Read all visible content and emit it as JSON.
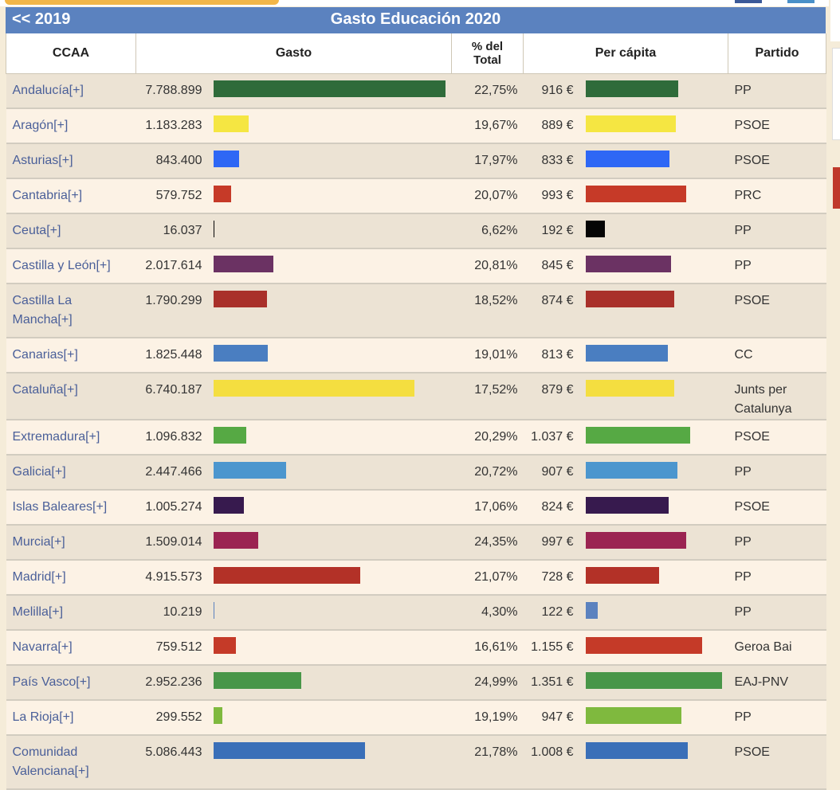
{
  "header": {
    "back_label": "<<  2019",
    "title": "Gasto Educación 2020"
  },
  "columns": {
    "ccaa": "CCAA",
    "gasto": "Gasto",
    "pct_line1": "% del",
    "pct_line2": "Total",
    "percapita": "Per cápita",
    "partido": "Partido"
  },
  "colors": {
    "title_bar": "#5b82bf",
    "link": "#4a5f99"
  },
  "chart_data": {
    "type": "table",
    "gasto_max": 7788899,
    "percapita_max": 1351,
    "rows": [
      {
        "name": "Andalucía[+]",
        "gasto": 7788899,
        "gasto_label": "7.788.899",
        "pct": "22,75%",
        "percapita": 916,
        "percapita_label": "916 €",
        "partido": "PP",
        "color": "#2f6b3a"
      },
      {
        "name": "Aragón[+]",
        "gasto": 1183283,
        "gasto_label": "1.183.283",
        "pct": "19,67%",
        "percapita": 889,
        "percapita_label": "889 €",
        "partido": "PSOE",
        "color": "#f5e642"
      },
      {
        "name": "Asturias[+]",
        "gasto": 843400,
        "gasto_label": "843.400",
        "pct": "17,97%",
        "percapita": 833,
        "percapita_label": "833 €",
        "partido": "PSOE",
        "color": "#2e67f5"
      },
      {
        "name": "Cantabria[+]",
        "gasto": 579752,
        "gasto_label": "579.752",
        "pct": "20,07%",
        "percapita": 993,
        "percapita_label": "993 €",
        "partido": "PRC",
        "color": "#c63a28"
      },
      {
        "name": "Ceuta[+]",
        "gasto": 16037,
        "gasto_label": "16.037",
        "pct": "6,62%",
        "percapita": 192,
        "percapita_label": "192 €",
        "partido": "PP",
        "color": "#050505"
      },
      {
        "name": "Castilla y León[+]",
        "gasto": 2017614,
        "gasto_label": "2.017.614",
        "pct": "20,81%",
        "percapita": 845,
        "percapita_label": "845 €",
        "partido": "PP",
        "color": "#6b3263"
      },
      {
        "name": "Castilla La Mancha[+]",
        "gasto": 1790299,
        "gasto_label": "1.790.299",
        "pct": "18,52%",
        "percapita": 874,
        "percapita_label": "874 €",
        "partido": "PSOE",
        "color": "#a9302a"
      },
      {
        "name": "Canarias[+]",
        "gasto": 1825448,
        "gasto_label": "1.825.448",
        "pct": "19,01%",
        "percapita": 813,
        "percapita_label": "813 €",
        "partido": "CC",
        "color": "#4a7ec1"
      },
      {
        "name": "Cataluña[+]",
        "gasto": 6740187,
        "gasto_label": "6.740.187",
        "pct": "17,52%",
        "percapita": 879,
        "percapita_label": "879 €",
        "partido": "Junts per Catalunya",
        "color": "#f4de40"
      },
      {
        "name": "Extremadura[+]",
        "gasto": 1096832,
        "gasto_label": "1.096.832",
        "pct": "20,29%",
        "percapita": 1037,
        "percapita_label": "1.037 €",
        "partido": "PSOE",
        "color": "#56a944"
      },
      {
        "name": "Galicia[+]",
        "gasto": 2447466,
        "gasto_label": "2.447.466",
        "pct": "20,72%",
        "percapita": 907,
        "percapita_label": "907 €",
        "partido": "PP",
        "color": "#4c96ce"
      },
      {
        "name": "Islas Baleares[+]",
        "gasto": 1005274,
        "gasto_label": "1.005.274",
        "pct": "17,06%",
        "percapita": 824,
        "percapita_label": "824 €",
        "partido": "PSOE",
        "color": "#371a4e"
      },
      {
        "name": "Murcia[+]",
        "gasto": 1509014,
        "gasto_label": "1.509.014",
        "pct": "24,35%",
        "percapita": 997,
        "percapita_label": "997 €",
        "partido": "PP",
        "color": "#9b2452"
      },
      {
        "name": "Madrid[+]",
        "gasto": 4915573,
        "gasto_label": "4.915.573",
        "pct": "21,07%",
        "percapita": 728,
        "percapita_label": "728 €",
        "partido": "PP",
        "color": "#b33127"
      },
      {
        "name": "Melilla[+]",
        "gasto": 10219,
        "gasto_label": "10.219",
        "pct": "4,30%",
        "percapita": 122,
        "percapita_label": "122 €",
        "partido": "PP",
        "color": "#5b82bf"
      },
      {
        "name": "Navarra[+]",
        "gasto": 759512,
        "gasto_label": "759.512",
        "pct": "16,61%",
        "percapita": 1155,
        "percapita_label": "1.155 €",
        "partido": "Geroa Bai",
        "color": "#c53a28"
      },
      {
        "name": "País Vasco[+]",
        "gasto": 2952236,
        "gasto_label": "2.952.236",
        "pct": "24,99%",
        "percapita": 1351,
        "percapita_label": "1.351 €",
        "partido": "EAJ-PNV",
        "color": "#489648"
      },
      {
        "name": "La Rioja[+]",
        "gasto": 299552,
        "gasto_label": "299.552",
        "pct": "19,19%",
        "percapita": 947,
        "percapita_label": "947 €",
        "partido": "PP",
        "color": "#7fb93e"
      },
      {
        "name": "Comunidad Valenciana[+]",
        "gasto": 5086443,
        "gasto_label": "5.086.443",
        "pct": "21,78%",
        "percapita": 1008,
        "percapita_label": "1.008 €",
        "partido": "PSOE",
        "color": "#3a6fb8"
      }
    ]
  }
}
